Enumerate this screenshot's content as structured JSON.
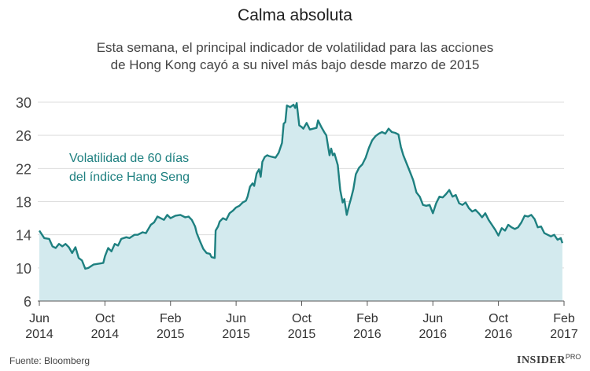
{
  "chart_data": {
    "type": "area",
    "title": "Calma absoluta",
    "subtitle_lines": [
      "Esta semana, el principal indicador de volatilidad para las acciones",
      "de Hong Kong cayó a su nivel más bajo desde marzo de 2015"
    ],
    "series_name": "Volatilidad de 60 días del índice Hang Seng",
    "series_label_lines": [
      "Volatilidad de 60 días",
      "del índice Hang Seng"
    ],
    "ylim": [
      6,
      30
    ],
    "yticks": [
      6,
      10,
      14,
      18,
      22,
      26,
      30
    ],
    "xlim": [
      0,
      32
    ],
    "xticks": [
      {
        "x": 0,
        "line1": "Jun",
        "line2": "2014"
      },
      {
        "x": 4,
        "line1": "Oct",
        "line2": "2014"
      },
      {
        "x": 8,
        "line1": "Feb",
        "line2": "2015"
      },
      {
        "x": 12,
        "line1": "Jun",
        "line2": "2015"
      },
      {
        "x": 16,
        "line1": "Oct",
        "line2": "2015"
      },
      {
        "x": 20,
        "line1": "Feb",
        "line2": "2016"
      },
      {
        "x": 24,
        "line1": "Jun",
        "line2": "2016"
      },
      {
        "x": 28,
        "line1": "Oct",
        "line2": "2016"
      },
      {
        "x": 32,
        "line1": "Feb",
        "line2": "2017"
      }
    ],
    "x_unit": "months since Jun 2014",
    "line_color": "#1e8080",
    "fill_color": "#d3eaee",
    "grid": true,
    "points": [
      [
        0.0,
        14.5
      ],
      [
        0.3,
        13.6
      ],
      [
        0.6,
        13.5
      ],
      [
        0.8,
        12.6
      ],
      [
        1.0,
        12.4
      ],
      [
        1.2,
        12.9
      ],
      [
        1.4,
        12.6
      ],
      [
        1.6,
        12.9
      ],
      [
        1.8,
        12.5
      ],
      [
        2.0,
        11.8
      ],
      [
        2.2,
        12.5
      ],
      [
        2.4,
        11.2
      ],
      [
        2.6,
        10.9
      ],
      [
        2.8,
        9.9
      ],
      [
        3.0,
        10.0
      ],
      [
        3.3,
        10.4
      ],
      [
        3.6,
        10.5
      ],
      [
        3.9,
        10.6
      ],
      [
        4.0,
        11.4
      ],
      [
        4.2,
        12.4
      ],
      [
        4.4,
        12.0
      ],
      [
        4.6,
        12.9
      ],
      [
        4.8,
        12.7
      ],
      [
        5.0,
        13.5
      ],
      [
        5.3,
        13.7
      ],
      [
        5.5,
        13.6
      ],
      [
        5.8,
        14.0
      ],
      [
        6.0,
        14.0
      ],
      [
        6.3,
        14.3
      ],
      [
        6.5,
        14.2
      ],
      [
        6.8,
        15.2
      ],
      [
        7.0,
        15.5
      ],
      [
        7.2,
        16.2
      ],
      [
        7.4,
        16.0
      ],
      [
        7.6,
        15.8
      ],
      [
        7.8,
        16.4
      ],
      [
        8.0,
        16.0
      ],
      [
        8.3,
        16.3
      ],
      [
        8.6,
        16.4
      ],
      [
        8.9,
        16.1
      ],
      [
        9.1,
        16.2
      ],
      [
        9.3,
        15.8
      ],
      [
        9.5,
        15.0
      ],
      [
        9.6,
        14.2
      ],
      [
        9.8,
        13.2
      ],
      [
        10.0,
        12.3
      ],
      [
        10.2,
        11.8
      ],
      [
        10.4,
        11.7
      ],
      [
        10.5,
        11.3
      ],
      [
        10.7,
        11.2
      ],
      [
        10.75,
        14.5
      ],
      [
        10.9,
        15.0
      ],
      [
        11.0,
        15.6
      ],
      [
        11.2,
        16.0
      ],
      [
        11.4,
        15.8
      ],
      [
        11.6,
        16.6
      ],
      [
        11.8,
        16.9
      ],
      [
        12.0,
        17.3
      ],
      [
        12.2,
        17.5
      ],
      [
        12.4,
        17.9
      ],
      [
        12.6,
        18.1
      ],
      [
        12.7,
        18.6
      ],
      [
        12.85,
        19.8
      ],
      [
        13.0,
        20.2
      ],
      [
        13.1,
        19.9
      ],
      [
        13.25,
        21.4
      ],
      [
        13.4,
        21.9
      ],
      [
        13.5,
        21.0
      ],
      [
        13.6,
        22.8
      ],
      [
        13.75,
        23.4
      ],
      [
        13.9,
        23.6
      ],
      [
        14.0,
        23.5
      ],
      [
        14.2,
        23.4
      ],
      [
        14.4,
        23.3
      ],
      [
        14.6,
        23.9
      ],
      [
        14.8,
        25.1
      ],
      [
        14.9,
        27.4
      ],
      [
        15.0,
        27.6
      ],
      [
        15.1,
        29.6
      ],
      [
        15.3,
        29.4
      ],
      [
        15.5,
        29.7
      ],
      [
        15.6,
        29.3
      ],
      [
        15.7,
        29.9
      ],
      [
        15.85,
        27.2
      ],
      [
        16.0,
        27.0
      ],
      [
        16.1,
        26.8
      ],
      [
        16.3,
        27.5
      ],
      [
        16.5,
        26.7
      ],
      [
        16.7,
        26.8
      ],
      [
        16.9,
        26.9
      ],
      [
        17.0,
        27.8
      ],
      [
        17.2,
        27.0
      ],
      [
        17.4,
        26.3
      ],
      [
        17.5,
        26.0
      ],
      [
        17.7,
        23.6
      ],
      [
        17.8,
        24.4
      ],
      [
        17.9,
        23.6
      ],
      [
        18.0,
        23.8
      ],
      [
        18.2,
        22.4
      ],
      [
        18.35,
        19.4
      ],
      [
        18.5,
        17.9
      ],
      [
        18.6,
        18.3
      ],
      [
        18.75,
        16.4
      ],
      [
        18.9,
        17.6
      ],
      [
        19.0,
        18.3
      ],
      [
        19.15,
        19.5
      ],
      [
        19.3,
        21.3
      ],
      [
        19.5,
        22.1
      ],
      [
        19.7,
        22.5
      ],
      [
        19.9,
        23.3
      ],
      [
        20.1,
        24.5
      ],
      [
        20.3,
        25.4
      ],
      [
        20.5,
        25.9
      ],
      [
        20.7,
        26.2
      ],
      [
        20.9,
        26.4
      ],
      [
        21.1,
        26.2
      ],
      [
        21.3,
        26.8
      ],
      [
        21.5,
        26.4
      ],
      [
        21.7,
        26.3
      ],
      [
        21.9,
        26.1
      ],
      [
        22.05,
        24.6
      ],
      [
        22.2,
        23.6
      ],
      [
        22.4,
        22.6
      ],
      [
        22.6,
        21.6
      ],
      [
        22.8,
        20.6
      ],
      [
        23.0,
        19.1
      ],
      [
        23.2,
        18.6
      ],
      [
        23.4,
        17.6
      ],
      [
        23.6,
        17.5
      ],
      [
        23.8,
        17.6
      ],
      [
        24.0,
        16.6
      ],
      [
        24.2,
        17.8
      ],
      [
        24.4,
        18.6
      ],
      [
        24.6,
        18.5
      ],
      [
        24.8,
        18.9
      ],
      [
        25.0,
        19.4
      ],
      [
        25.2,
        18.6
      ],
      [
        25.4,
        18.8
      ],
      [
        25.6,
        17.8
      ],
      [
        25.8,
        17.6
      ],
      [
        26.0,
        17.9
      ],
      [
        26.2,
        17.2
      ],
      [
        26.4,
        16.8
      ],
      [
        26.6,
        17.0
      ],
      [
        26.8,
        16.6
      ],
      [
        27.0,
        16.1
      ],
      [
        27.2,
        16.6
      ],
      [
        27.4,
        15.8
      ],
      [
        27.6,
        15.2
      ],
      [
        27.8,
        14.6
      ],
      [
        28.0,
        13.9
      ],
      [
        28.2,
        14.8
      ],
      [
        28.4,
        14.5
      ],
      [
        28.6,
        15.2
      ],
      [
        28.8,
        14.9
      ],
      [
        29.0,
        14.7
      ],
      [
        29.2,
        14.9
      ],
      [
        29.4,
        15.5
      ],
      [
        29.6,
        16.3
      ],
      [
        29.8,
        16.2
      ],
      [
        30.0,
        16.4
      ],
      [
        30.2,
        15.9
      ],
      [
        30.4,
        14.9
      ],
      [
        30.6,
        15.0
      ],
      [
        30.8,
        14.2
      ],
      [
        31.0,
        14.0
      ],
      [
        31.2,
        13.8
      ],
      [
        31.4,
        14.0
      ],
      [
        31.6,
        13.4
      ],
      [
        31.8,
        13.6
      ],
      [
        31.9,
        13.0
      ]
    ]
  },
  "footer": {
    "source": "Fuente: Bloomberg",
    "brand": "INSIDER",
    "brand_sup": "PRO"
  }
}
